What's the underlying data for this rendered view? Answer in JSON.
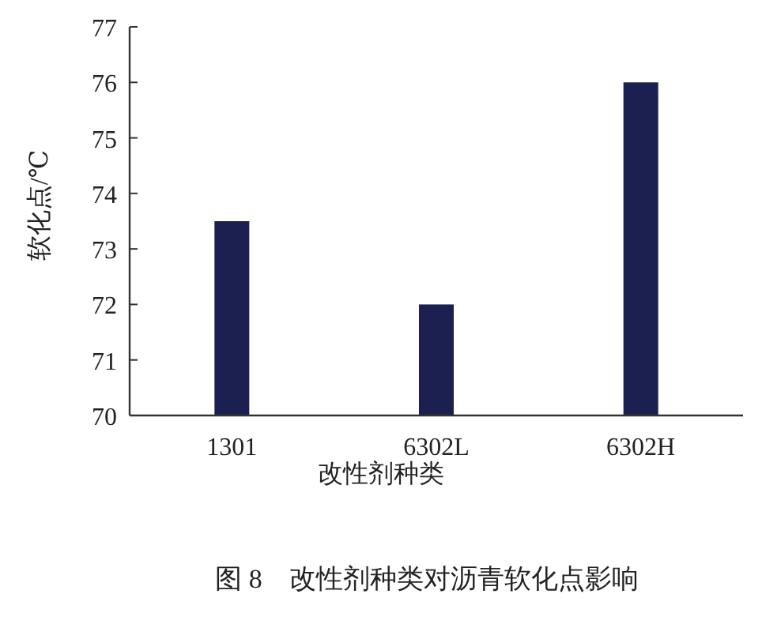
{
  "chart_data": {
    "type": "bar",
    "title": "图 8　改性剂种类对沥青软化点影响",
    "xlabel": "改性剂种类",
    "ylabel": "软化点/℃",
    "categories": [
      "1301",
      "6302L",
      "6302H"
    ],
    "values": [
      73.5,
      72,
      76
    ],
    "color": "#1c2050",
    "ylim": [
      70,
      77
    ],
    "yticks": [
      70,
      71,
      72,
      73,
      74,
      75,
      76,
      77
    ]
  }
}
